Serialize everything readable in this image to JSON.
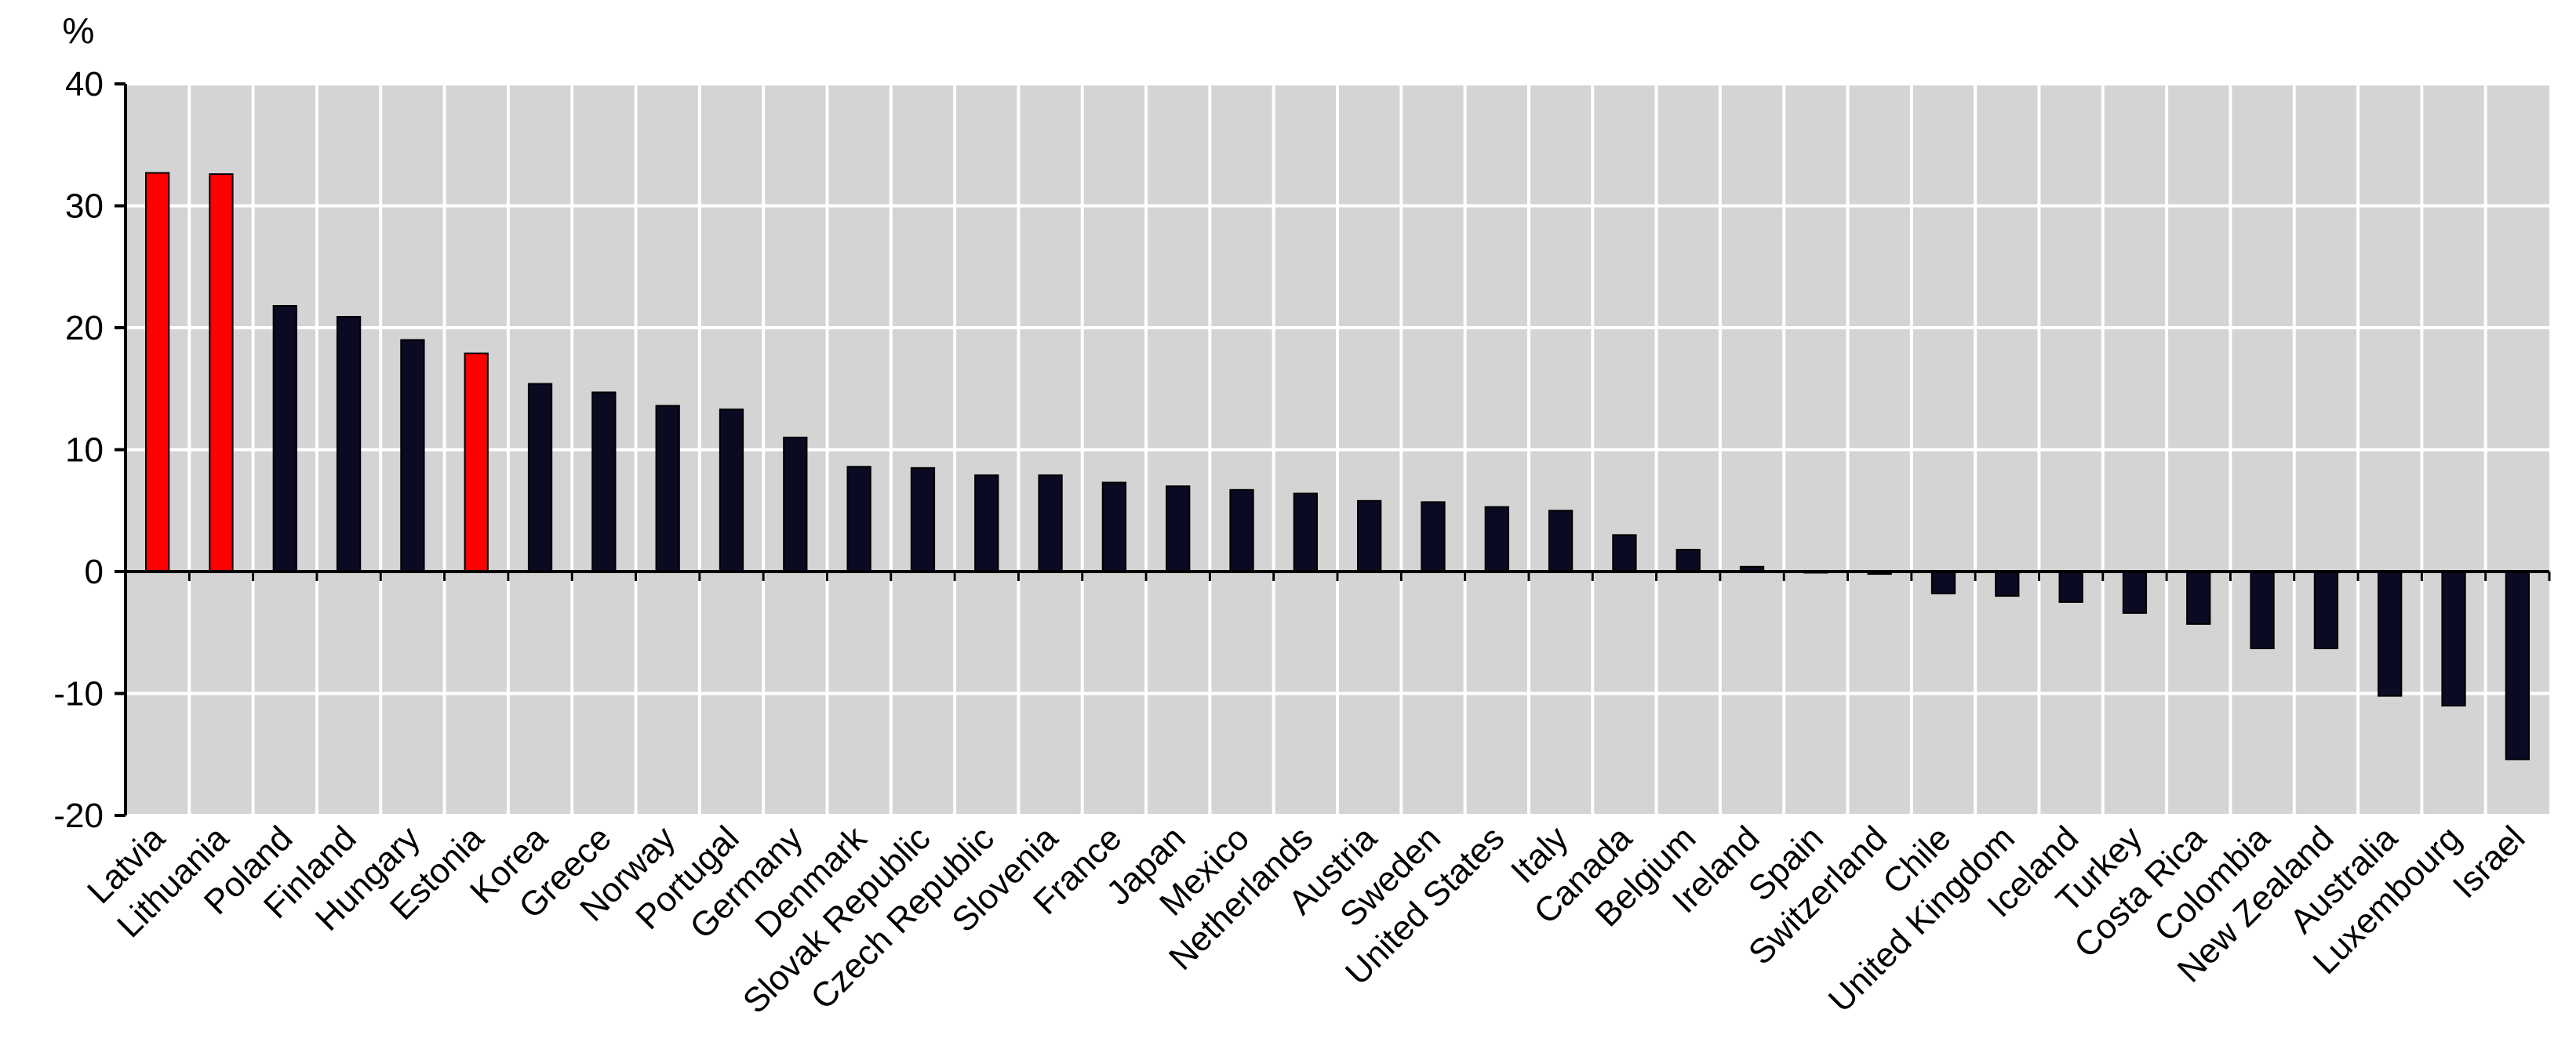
{
  "colors": {
    "plot_background": "#d4d4d4",
    "gridline": "#ffffff",
    "bar_default": "#0a0a23",
    "bar_highlight": "#ff0000",
    "axis": "#000000"
  },
  "chart_data": {
    "type": "bar",
    "unit_label": "%",
    "grid": true,
    "legend": "none",
    "ylim": [
      -20,
      40
    ],
    "yticks": [
      40,
      30,
      20,
      10,
      0,
      -10,
      -20
    ],
    "categories": [
      "Latvia",
      "Lithuania",
      "Poland",
      "Finland",
      "Hungary",
      "Estonia",
      "Korea",
      "Greece",
      "Norway",
      "Portugal",
      "Germany",
      "Denmark",
      "Slovak Republic",
      "Czech Republic",
      "Slovenia",
      "France",
      "Japan",
      "Mexico",
      "Netherlands",
      "Austria",
      "Sweden",
      "United States",
      "Italy",
      "Canada",
      "Belgium",
      "Ireland",
      "Spain",
      "Switzerland",
      "Chile",
      "United Kingdom",
      "Iceland",
      "Turkey",
      "Costa Rica",
      "Colombia",
      "New Zealand",
      "Australia",
      "Luxembourg",
      "Israel"
    ],
    "values": [
      32.7,
      32.6,
      21.8,
      20.9,
      19.0,
      17.9,
      15.4,
      14.7,
      13.6,
      13.3,
      11.0,
      8.6,
      8.5,
      7.9,
      7.9,
      7.3,
      7.0,
      6.7,
      6.4,
      5.8,
      5.7,
      5.3,
      5.0,
      3.0,
      1.8,
      0.4,
      0.0,
      -0.2,
      -1.8,
      -2.0,
      -2.5,
      -3.4,
      -4.3,
      -6.3,
      -6.3,
      -10.2,
      -11.0,
      -15.4
    ],
    "highlighted": [
      "Latvia",
      "Lithuania",
      "Estonia"
    ]
  }
}
